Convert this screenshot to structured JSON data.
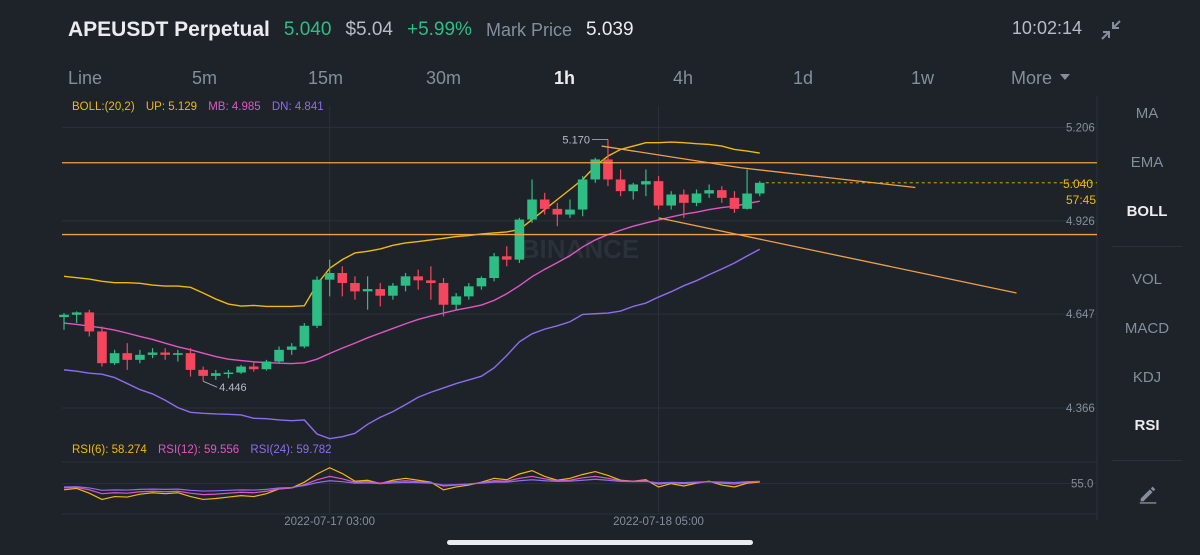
{
  "header": {
    "pair": "APEUSDT Perpetual",
    "last_price": "5.040",
    "usd_price": "$5.04",
    "change_pct": "+5.99%",
    "mark_label": "Mark Price",
    "mark_value": "5.039",
    "clock": "10:02:14"
  },
  "timeframes": [
    "Line",
    "5m",
    "15m",
    "30m",
    "1h",
    "4h",
    "1d",
    "1w",
    "More"
  ],
  "active_timeframe": "1h",
  "indicators": [
    "MA",
    "EMA",
    "BOLL",
    "VOL",
    "MACD",
    "KDJ",
    "RSI"
  ],
  "active_indicators": [
    "BOLL",
    "RSI"
  ],
  "boll_legend": {
    "params": "BOLL:(20,2)",
    "up": "UP: 5.129",
    "mb": "MB: 4.985",
    "dn": "DN: 4.841"
  },
  "rsi_legend": {
    "rsi6": "RSI(6): 58.274",
    "rsi12": "RSI(12): 59.556",
    "rsi24": "RSI(24): 59.782"
  },
  "colors": {
    "up": "#2ebd85",
    "down": "#f6465d",
    "boll_up": "#f0b90b",
    "boll_mb": "#e056c4",
    "boll_dn": "#8e6cf0",
    "trendline": "#f0a04b"
  },
  "watermark": "BINANCE",
  "chart_data": {
    "type": "candlestick",
    "title": "APEUSDT Perpetual 1h",
    "y_price_range": [
      4.3,
      5.24
    ],
    "y_ticks": [
      5.206,
      4.926,
      4.647,
      4.366
    ],
    "x_labels": [
      {
        "index": 21,
        "text": "2022-07-17 03:00"
      },
      {
        "index": 47,
        "text": "2022-07-18 05:00"
      }
    ],
    "high_label": {
      "index": 43,
      "text": "5.170"
    },
    "low_label": {
      "index": 11,
      "text": "4.446"
    },
    "current_price": "5.040",
    "countdown": "57:45",
    "candles": [
      [
        4.638,
        4.65,
        4.645,
        4.6
      ],
      [
        4.645,
        4.655,
        4.652,
        4.62
      ],
      [
        4.652,
        4.66,
        4.595,
        4.58
      ],
      [
        4.595,
        4.61,
        4.5,
        4.49
      ],
      [
        4.5,
        4.54,
        4.53,
        4.495
      ],
      [
        4.53,
        4.56,
        4.51,
        4.48
      ],
      [
        4.51,
        4.54,
        4.525,
        4.5
      ],
      [
        4.525,
        4.545,
        4.532,
        4.515
      ],
      [
        4.532,
        4.545,
        4.525,
        4.51
      ],
      [
        4.525,
        4.54,
        4.53,
        4.505
      ],
      [
        4.53,
        4.545,
        4.48,
        4.46
      ],
      [
        4.48,
        4.49,
        4.462,
        4.446
      ],
      [
        4.462,
        4.48,
        4.47,
        4.45
      ],
      [
        4.47,
        4.48,
        4.472,
        4.455
      ],
      [
        4.472,
        4.495,
        4.49,
        4.468
      ],
      [
        4.49,
        4.505,
        4.482,
        4.475
      ],
      [
        4.482,
        4.51,
        4.505,
        4.478
      ],
      [
        4.505,
        4.55,
        4.54,
        4.5
      ],
      [
        4.54,
        4.56,
        4.55,
        4.525
      ],
      [
        4.55,
        4.62,
        4.612,
        4.545
      ],
      [
        4.612,
        4.76,
        4.75,
        4.605
      ],
      [
        4.75,
        4.81,
        4.77,
        4.7
      ],
      [
        4.77,
        4.79,
        4.74,
        4.7
      ],
      [
        4.74,
        4.76,
        4.715,
        4.69
      ],
      [
        4.715,
        4.76,
        4.722,
        4.66
      ],
      [
        4.722,
        4.74,
        4.702,
        4.67
      ],
      [
        4.702,
        4.74,
        4.732,
        4.69
      ],
      [
        4.732,
        4.77,
        4.76,
        4.715
      ],
      [
        4.76,
        4.78,
        4.748,
        4.72
      ],
      [
        4.748,
        4.79,
        4.74,
        4.69
      ],
      [
        4.74,
        4.755,
        4.675,
        4.64
      ],
      [
        4.675,
        4.71,
        4.7,
        4.66
      ],
      [
        4.7,
        4.74,
        4.73,
        4.69
      ],
      [
        4.73,
        4.76,
        4.755,
        4.72
      ],
      [
        4.755,
        4.83,
        4.82,
        4.745
      ],
      [
        4.82,
        4.85,
        4.81,
        4.79
      ],
      [
        4.81,
        4.935,
        4.93,
        4.8
      ],
      [
        4.93,
        5.05,
        4.99,
        4.92
      ],
      [
        4.99,
        5.01,
        4.962,
        4.945
      ],
      [
        4.962,
        4.98,
        4.945,
        4.91
      ],
      [
        4.945,
        4.99,
        4.96,
        4.935
      ],
      [
        4.96,
        5.06,
        5.05,
        4.94
      ],
      [
        5.05,
        5.115,
        5.11,
        5.04
      ],
      [
        5.11,
        5.17,
        5.05,
        5.03
      ],
      [
        5.05,
        5.08,
        5.015,
        5.0
      ],
      [
        5.015,
        5.04,
        5.035,
        4.99
      ],
      [
        5.035,
        5.08,
        5.045,
        5.0
      ],
      [
        5.045,
        5.06,
        4.972,
        4.96
      ],
      [
        4.972,
        5.015,
        5.005,
        4.96
      ],
      [
        5.005,
        5.02,
        4.98,
        4.935
      ],
      [
        4.98,
        5.02,
        5.008,
        4.97
      ],
      [
        5.008,
        5.035,
        5.018,
        4.995
      ],
      [
        5.018,
        5.03,
        4.995,
        4.98
      ],
      [
        4.995,
        5.015,
        4.962,
        4.95
      ],
      [
        4.962,
        5.08,
        5.008,
        4.96
      ],
      [
        5.008,
        5.045,
        5.04,
        5.0
      ]
    ],
    "boll_upper": [
      4.76,
      4.756,
      4.752,
      4.745,
      4.741,
      4.741,
      4.739,
      4.734,
      4.731,
      4.731,
      4.727,
      4.71,
      4.692,
      4.677,
      4.671,
      4.673,
      4.67,
      4.67,
      4.67,
      4.672,
      4.736,
      4.784,
      4.81,
      4.83,
      4.835,
      4.842,
      4.853,
      4.86,
      4.864,
      4.869,
      4.874,
      4.879,
      4.882,
      4.887,
      4.89,
      4.893,
      4.9,
      4.93,
      4.96,
      4.99,
      5.02,
      5.05,
      5.09,
      5.12,
      5.14,
      5.15,
      5.16,
      5.16,
      5.162,
      5.16,
      5.157,
      5.155,
      5.15,
      5.14,
      5.135,
      5.129
    ],
    "boll_mid": [
      4.62,
      4.616,
      4.611,
      4.606,
      4.599,
      4.59,
      4.58,
      4.571,
      4.56,
      4.549,
      4.54,
      4.53,
      4.52,
      4.512,
      4.508,
      4.504,
      4.502,
      4.5,
      4.499,
      4.501,
      4.512,
      4.529,
      4.545,
      4.56,
      4.576,
      4.59,
      4.604,
      4.618,
      4.631,
      4.641,
      4.65,
      4.659,
      4.666,
      4.674,
      4.688,
      4.708,
      4.732,
      4.759,
      4.781,
      4.801,
      4.822,
      4.848,
      4.869,
      4.885,
      4.898,
      4.91,
      4.92,
      4.929,
      4.938,
      4.946,
      4.952,
      4.96,
      4.966,
      4.97,
      4.978,
      4.985
    ],
    "boll_lower": [
      4.48,
      4.476,
      4.47,
      4.467,
      4.457,
      4.439,
      4.421,
      4.408,
      4.389,
      4.367,
      4.353,
      4.35,
      4.348,
      4.347,
      4.345,
      4.335,
      4.334,
      4.33,
      4.328,
      4.33,
      4.288,
      4.274,
      4.28,
      4.29,
      4.317,
      4.338,
      4.355,
      4.376,
      4.398,
      4.413,
      4.426,
      4.439,
      4.45,
      4.461,
      4.486,
      4.523,
      4.564,
      4.588,
      4.602,
      4.612,
      4.624,
      4.646,
      4.648,
      4.65,
      4.656,
      4.67,
      4.68,
      4.698,
      4.714,
      4.732,
      4.747,
      4.765,
      4.782,
      4.8,
      4.821,
      4.841
    ],
    "rsi_range": [
      0,
      100
    ],
    "rsi_ticks": [
      55.0
    ],
    "rsi6": [
      42,
      45,
      35,
      22,
      28,
      27,
      33,
      36,
      34,
      36,
      28,
      22,
      24,
      27,
      30,
      28,
      34,
      44,
      46,
      58,
      75,
      88,
      76,
      60,
      62,
      55,
      62,
      66,
      62,
      58,
      42,
      48,
      52,
      58,
      66,
      63,
      75,
      82,
      70,
      62,
      66,
      74,
      80,
      72,
      62,
      60,
      63,
      48,
      55,
      50,
      56,
      60,
      52,
      48,
      56,
      58.274
    ],
    "rsi12": [
      46,
      47,
      42,
      34,
      36,
      35,
      38,
      39,
      38,
      39,
      35,
      32,
      33,
      35,
      37,
      36,
      39,
      44,
      46,
      53,
      63,
      70,
      65,
      58,
      59,
      56,
      59,
      61,
      59,
      57,
      50,
      52,
      54,
      57,
      61,
      60,
      66,
      70,
      65,
      61,
      62,
      67,
      70,
      66,
      61,
      60,
      61,
      54,
      57,
      55,
      57,
      59,
      56,
      54,
      58,
      59.556
    ],
    "rsi24": [
      48,
      48.5,
      46,
      41,
      42,
      41.5,
      43,
      43.5,
      43,
      43.5,
      41,
      39.5,
      40,
      41,
      42,
      41.5,
      43,
      46,
      47,
      51,
      57,
      61,
      59,
      56,
      56.5,
      55,
      56.5,
      57.5,
      57,
      56,
      52,
      53,
      54,
      56,
      58,
      58,
      61,
      63,
      61,
      59.5,
      60,
      62,
      64,
      62,
      59.5,
      59,
      59.5,
      56.5,
      57.5,
      57,
      58,
      59,
      58,
      57,
      59,
      59.782
    ],
    "trendlines": [
      {
        "name": "upper-trendline",
        "from": [
          42.5,
          5.15
        ],
        "to": [
          53.5,
          5.085
        ]
      },
      {
        "name": "upper-trendline-ext",
        "from": [
          53.5,
          5.085
        ],
        "to": [
          67.3,
          5.026
        ]
      },
      {
        "name": "lower-trendline",
        "from": [
          47.0,
          4.935
        ],
        "to": [
          75.3,
          4.71
        ]
      }
    ],
    "horizontal_levels": [
      5.1,
      4.885
    ]
  }
}
